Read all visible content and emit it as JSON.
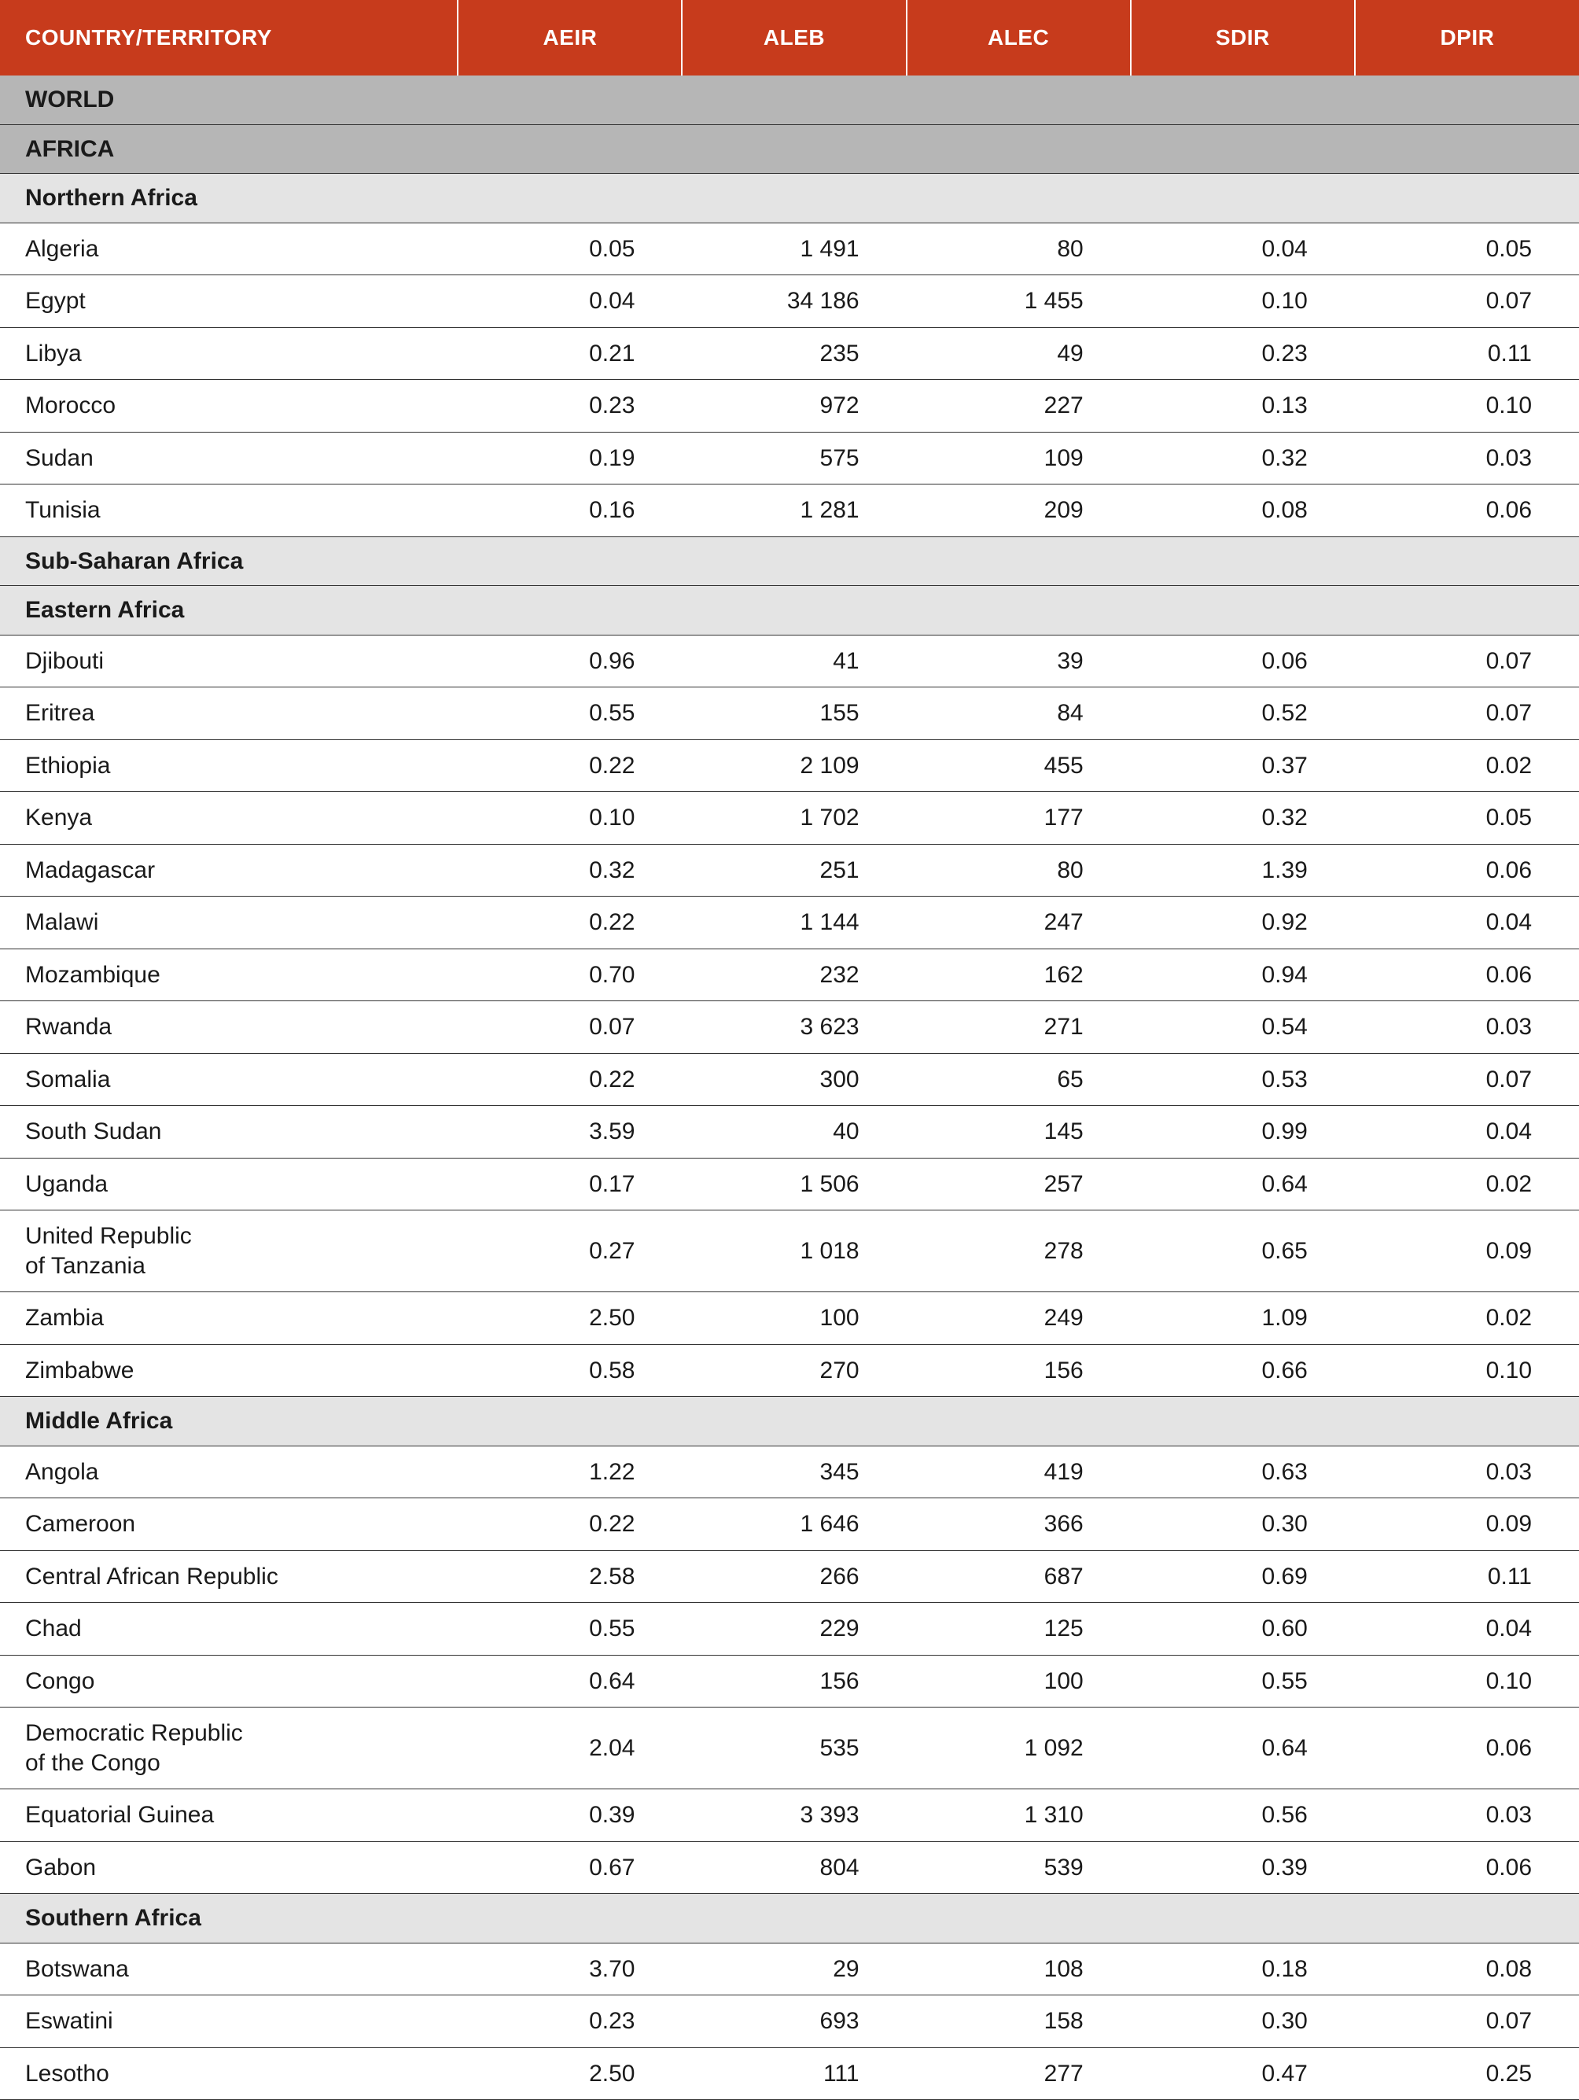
{
  "type": "table",
  "columns": [
    "COUNTRY/TERRITORY",
    "AEIR",
    "ALEB",
    "ALEC",
    "SDIR",
    "DPIR"
  ],
  "column_widths_pct": [
    29,
    14.2,
    14.2,
    14.2,
    14.2,
    14.2
  ],
  "header_bg": "#c73b1c",
  "header_fg": "#ffffff",
  "region_major_bg": "#b6b6b6",
  "region_sub_bg": "#e4e4e4",
  "row_border_color": "#333333",
  "text_color": "#1a1a1a",
  "header_fontsize": 28,
  "body_fontsize": 30,
  "rows": [
    {
      "kind": "region-major",
      "label": "WORLD"
    },
    {
      "kind": "region-major",
      "label": "AFRICA"
    },
    {
      "kind": "region-sub",
      "label": "Northern Africa"
    },
    {
      "kind": "data",
      "label": "Algeria",
      "AEIR": "0.05",
      "ALEB": "1 491",
      "ALEC": "80",
      "SDIR": "0.04",
      "DPIR": "0.05"
    },
    {
      "kind": "data",
      "label": "Egypt",
      "AEIR": "0.04",
      "ALEB": "34 186",
      "ALEC": "1 455",
      "SDIR": "0.10",
      "DPIR": "0.07"
    },
    {
      "kind": "data",
      "label": "Libya",
      "AEIR": "0.21",
      "ALEB": "235",
      "ALEC": "49",
      "SDIR": "0.23",
      "DPIR": "0.11"
    },
    {
      "kind": "data",
      "label": "Morocco",
      "AEIR": "0.23",
      "ALEB": "972",
      "ALEC": "227",
      "SDIR": "0.13",
      "DPIR": "0.10"
    },
    {
      "kind": "data",
      "label": "Sudan",
      "AEIR": "0.19",
      "ALEB": "575",
      "ALEC": "109",
      "SDIR": "0.32",
      "DPIR": "0.03"
    },
    {
      "kind": "data",
      "label": "Tunisia",
      "AEIR": "0.16",
      "ALEB": "1 281",
      "ALEC": "209",
      "SDIR": "0.08",
      "DPIR": "0.06"
    },
    {
      "kind": "region-sub",
      "label": "Sub-Saharan Africa"
    },
    {
      "kind": "region-sub",
      "label": "Eastern Africa"
    },
    {
      "kind": "data",
      "label": "Djibouti",
      "AEIR": "0.96",
      "ALEB": "41",
      "ALEC": "39",
      "SDIR": "0.06",
      "DPIR": "0.07"
    },
    {
      "kind": "data",
      "label": "Eritrea",
      "AEIR": "0.55",
      "ALEB": "155",
      "ALEC": "84",
      "SDIR": "0.52",
      "DPIR": "0.07"
    },
    {
      "kind": "data",
      "label": "Ethiopia",
      "AEIR": "0.22",
      "ALEB": "2 109",
      "ALEC": "455",
      "SDIR": "0.37",
      "DPIR": "0.02"
    },
    {
      "kind": "data",
      "label": "Kenya",
      "AEIR": "0.10",
      "ALEB": "1 702",
      "ALEC": "177",
      "SDIR": "0.32",
      "DPIR": "0.05"
    },
    {
      "kind": "data",
      "label": "Madagascar",
      "AEIR": "0.32",
      "ALEB": "251",
      "ALEC": "80",
      "SDIR": "1.39",
      "DPIR": "0.06"
    },
    {
      "kind": "data",
      "label": "Malawi",
      "AEIR": "0.22",
      "ALEB": "1 144",
      "ALEC": "247",
      "SDIR": "0.92",
      "DPIR": "0.04"
    },
    {
      "kind": "data",
      "label": "Mozambique",
      "AEIR": "0.70",
      "ALEB": "232",
      "ALEC": "162",
      "SDIR": "0.94",
      "DPIR": "0.06"
    },
    {
      "kind": "data",
      "label": "Rwanda",
      "AEIR": "0.07",
      "ALEB": "3 623",
      "ALEC": "271",
      "SDIR": "0.54",
      "DPIR": "0.03"
    },
    {
      "kind": "data",
      "label": "Somalia",
      "AEIR": "0.22",
      "ALEB": "300",
      "ALEC": "65",
      "SDIR": "0.53",
      "DPIR": "0.07"
    },
    {
      "kind": "data",
      "label": "South Sudan",
      "AEIR": "3.59",
      "ALEB": "40",
      "ALEC": "145",
      "SDIR": "0.99",
      "DPIR": "0.04"
    },
    {
      "kind": "data",
      "label": "Uganda",
      "AEIR": "0.17",
      "ALEB": "1 506",
      "ALEC": "257",
      "SDIR": "0.64",
      "DPIR": "0.02"
    },
    {
      "kind": "data",
      "label": "United Republic\nof Tanzania",
      "AEIR": "0.27",
      "ALEB": "1 018",
      "ALEC": "278",
      "SDIR": "0.65",
      "DPIR": "0.09"
    },
    {
      "kind": "data",
      "label": "Zambia",
      "AEIR": "2.50",
      "ALEB": "100",
      "ALEC": "249",
      "SDIR": "1.09",
      "DPIR": "0.02"
    },
    {
      "kind": "data",
      "label": "Zimbabwe",
      "AEIR": "0.58",
      "ALEB": "270",
      "ALEC": "156",
      "SDIR": "0.66",
      "DPIR": "0.10"
    },
    {
      "kind": "region-sub",
      "label": "Middle Africa"
    },
    {
      "kind": "data",
      "label": "Angola",
      "AEIR": "1.22",
      "ALEB": "345",
      "ALEC": "419",
      "SDIR": "0.63",
      "DPIR": "0.03"
    },
    {
      "kind": "data",
      "label": "Cameroon",
      "AEIR": "0.22",
      "ALEB": "1 646",
      "ALEC": "366",
      "SDIR": "0.30",
      "DPIR": "0.09"
    },
    {
      "kind": "data",
      "label": "Central African Republic",
      "AEIR": "2.58",
      "ALEB": "266",
      "ALEC": "687",
      "SDIR": "0.69",
      "DPIR": "0.11"
    },
    {
      "kind": "data",
      "label": "Chad",
      "AEIR": "0.55",
      "ALEB": "229",
      "ALEC": "125",
      "SDIR": "0.60",
      "DPIR": "0.04"
    },
    {
      "kind": "data",
      "label": "Congo",
      "AEIR": "0.64",
      "ALEB": "156",
      "ALEC": "100",
      "SDIR": "0.55",
      "DPIR": "0.10"
    },
    {
      "kind": "data",
      "label": "Democratic Republic\nof the Congo",
      "AEIR": "2.04",
      "ALEB": "535",
      "ALEC": "1 092",
      "SDIR": "0.64",
      "DPIR": "0.06"
    },
    {
      "kind": "data",
      "label": "Equatorial Guinea",
      "AEIR": "0.39",
      "ALEB": "3 393",
      "ALEC": "1 310",
      "SDIR": "0.56",
      "DPIR": "0.03"
    },
    {
      "kind": "data",
      "label": "Gabon",
      "AEIR": "0.67",
      "ALEB": "804",
      "ALEC": "539",
      "SDIR": "0.39",
      "DPIR": "0.06"
    },
    {
      "kind": "region-sub",
      "label": "Southern Africa"
    },
    {
      "kind": "data",
      "label": "Botswana",
      "AEIR": "3.70",
      "ALEB": "29",
      "ALEC": "108",
      "SDIR": "0.18",
      "DPIR": "0.08"
    },
    {
      "kind": "data",
      "label": "Eswatini",
      "AEIR": "0.23",
      "ALEB": "693",
      "ALEC": "158",
      "SDIR": "0.30",
      "DPIR": "0.07"
    },
    {
      "kind": "data",
      "label": "Lesotho",
      "AEIR": "2.50",
      "ALEB": "111",
      "ALEC": "277",
      "SDIR": "0.47",
      "DPIR": "0.25"
    }
  ]
}
